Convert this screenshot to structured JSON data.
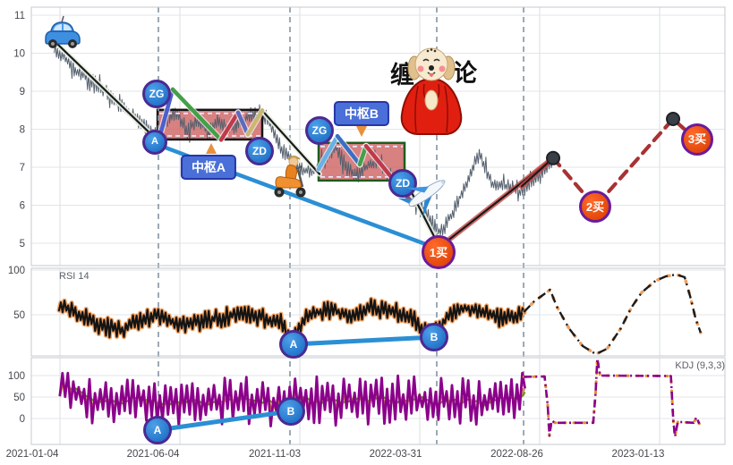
{
  "panels": {
    "rsi_label": "RSI 14",
    "kdj_label": "KDJ (9,3,3)"
  },
  "annotations": {
    "pivot_a_label": "中枢A",
    "pivot_b_label": "中枢B",
    "mascot_left": "缠",
    "mascot_right": "论"
  },
  "markers": {
    "zg_a": {
      "label": "ZG",
      "panel": "price",
      "u": 0.1806,
      "v": 8.93,
      "r": 13,
      "kind": "blue"
    },
    "a_seg": {
      "label": "A",
      "panel": "price",
      "u": 0.1781,
      "v": 7.66,
      "r": 11,
      "kind": "blue"
    },
    "zd_a": {
      "label": "ZD",
      "panel": "price",
      "u": 0.329,
      "v": 7.42,
      "r": 13,
      "kind": "blue"
    },
    "zg_b": {
      "label": "ZG",
      "panel": "price",
      "u": 0.4155,
      "v": 7.96,
      "r": 13,
      "kind": "blue"
    },
    "zd_b": {
      "label": "ZD",
      "panel": "price",
      "u": 0.5355,
      "v": 6.58,
      "r": 13,
      "kind": "blue"
    },
    "buy1": {
      "label": "1买",
      "panel": "price",
      "u": 0.5871,
      "v": 4.76,
      "r": 16,
      "kind": "buy"
    },
    "buy2": {
      "label": "2买",
      "panel": "price",
      "u": 0.8129,
      "v": 5.96,
      "r": 15,
      "kind": "buy"
    },
    "buy3": {
      "label": "3买",
      "panel": "price",
      "u": 0.96,
      "v": 7.73,
      "r": 15,
      "kind": "buy"
    },
    "rsi_a": {
      "label": "A",
      "panel": "rsi",
      "u": 0.3781,
      "v": 17,
      "r": 13,
      "kind": "blue"
    },
    "rsi_b": {
      "label": "B",
      "panel": "rsi",
      "u": 0.5806,
      "v": 25,
      "r": 13,
      "kind": "blue"
    },
    "kdj_a": {
      "label": "A",
      "panel": "kdj",
      "u": 0.1819,
      "v": -27,
      "r": 13,
      "kind": "blue"
    },
    "kdj_b": {
      "label": "B",
      "panel": "kdj",
      "u": 0.3742,
      "v": 17,
      "r": 13,
      "kind": "blue"
    }
  },
  "colors": {
    "pivot_fill": "#cd6161",
    "buy_marker": "#e8480e",
    "blue_marker": "#1e7ad4",
    "marker_ring": "#4b2a92",
    "trend_blue": "#2b8fd4",
    "forecast_red": "#a83232",
    "kdj_j": "#8b008b",
    "kdj_k": "#e09030",
    "kdj_d": "#6b8e23",
    "rsi_line": "#141414",
    "rsi_glow": "#f0a060",
    "grid": "#dcdfe3"
  },
  "chart_data": {
    "type": "line",
    "x_tick_labels": [
      "2021-01-04",
      "2021-06-04",
      "2021-11-03",
      "2022-03-31",
      "2022-08-26",
      "2023-01-13"
    ],
    "x_tick_u": [
      0.0013,
      0.1755,
      0.351,
      0.5252,
      0.7,
      0.8748
    ],
    "grid_u": [
      0.0413,
      0.2142,
      0.3871,
      0.56,
      0.7329,
      0.9058
    ],
    "event_lines_u": [
      0.1832,
      0.3729,
      0.5845,
      0.7097
    ],
    "price": {
      "ylabel_ticks": [
        11,
        10,
        9,
        8,
        7,
        6,
        5
      ],
      "ylim": [
        4.5,
        11.2
      ],
      "series_anchors": [
        [
          0.033,
          10.05
        ],
        [
          0.045,
          9.95
        ],
        [
          0.06,
          9.6
        ],
        [
          0.08,
          9.35
        ],
        [
          0.1,
          9.1
        ],
        [
          0.12,
          8.75
        ],
        [
          0.145,
          8.35
        ],
        [
          0.165,
          8.05
        ],
        [
          0.183,
          7.8
        ],
        [
          0.195,
          8.25
        ],
        [
          0.21,
          8.45
        ],
        [
          0.225,
          7.95
        ],
        [
          0.24,
          8.3
        ],
        [
          0.255,
          7.9
        ],
        [
          0.27,
          8.25
        ],
        [
          0.285,
          8.0
        ],
        [
          0.3,
          8.15
        ],
        [
          0.315,
          8.35
        ],
        [
          0.33,
          8.45
        ],
        [
          0.345,
          8.1
        ],
        [
          0.36,
          7.5
        ],
        [
          0.375,
          7.15
        ],
        [
          0.39,
          6.95
        ],
        [
          0.405,
          6.85
        ],
        [
          0.4142,
          7.0
        ],
        [
          0.425,
          7.2
        ],
        [
          0.44,
          7.5
        ],
        [
          0.455,
          7.0
        ],
        [
          0.47,
          6.8
        ],
        [
          0.485,
          7.05
        ],
        [
          0.5,
          7.15
        ],
        [
          0.515,
          6.8
        ],
        [
          0.53,
          6.65
        ],
        [
          0.545,
          6.3
        ],
        [
          0.56,
          6.05
        ],
        [
          0.575,
          5.65
        ],
        [
          0.5871,
          5.3
        ],
        [
          0.6,
          5.55
        ],
        [
          0.615,
          6.1
        ],
        [
          0.63,
          6.7
        ],
        [
          0.6452,
          7.35
        ],
        [
          0.655,
          6.9
        ],
        [
          0.665,
          6.55
        ],
        [
          0.68,
          6.5
        ],
        [
          0.695,
          6.45
        ],
        [
          0.705,
          6.35
        ],
        [
          0.72,
          6.55
        ],
        [
          0.735,
          6.85
        ],
        [
          0.7523,
          7.15
        ]
      ],
      "pivots": [
        {
          "name": "中枢A",
          "u1": 0.182,
          "u2": 0.3329,
          "zg": 8.51,
          "zd": 7.73,
          "border": "#141414"
        },
        {
          "name": "中枢B",
          "u1": 0.4142,
          "u2": 0.5381,
          "zg": 7.64,
          "zd": 6.65,
          "border": "#1e5c1e"
        }
      ],
      "segments_white": [
        [
          [
            0.0387,
            10.22
          ],
          [
            0.1832,
            7.68
          ]
        ],
        [
          [
            0.3329,
            8.49
          ],
          [
            0.4155,
            6.82
          ]
        ],
        [
          [
            0.5381,
            6.7
          ],
          [
            0.5871,
            4.95
          ]
        ]
      ],
      "segments_red": [
        [
          [
            0.5871,
            4.88
          ],
          [
            0.7523,
            7.24
          ]
        ],
        [
          [
            0.7071,
            6.5
          ],
          [
            0.7523,
            7.24
          ]
        ]
      ],
      "pens": [
        {
          "c": "#4a5fd0",
          "p": [
            [
              0.1832,
              7.68
            ],
            [
              0.2039,
              9.05
            ]
          ]
        },
        {
          "c": "#43a047",
          "p": [
            [
              0.2039,
              9.05
            ],
            [
              0.2735,
              7.72
            ]
          ]
        },
        {
          "c": "#c0394b",
          "p": [
            [
              0.2735,
              7.72
            ],
            [
              0.2981,
              8.44
            ]
          ]
        },
        {
          "c": "#5c6bc0",
          "p": [
            [
              0.2981,
              8.44
            ],
            [
              0.3123,
              7.86
            ]
          ]
        },
        {
          "c": "#c9b870",
          "p": [
            [
              0.3123,
              7.86
            ],
            [
              0.3329,
              8.5
            ]
          ]
        },
        {
          "c": "#67b0e8",
          "p": [
            [
              0.4142,
              6.95
            ],
            [
              0.4413,
              7.82
            ]
          ]
        },
        {
          "c": "#3b6fc4",
          "p": [
            [
              0.4413,
              7.82
            ],
            [
              0.4735,
              7.07
            ]
          ]
        },
        {
          "c": "#43a047",
          "p": [
            [
              0.4735,
              7.07
            ],
            [
              0.4826,
              7.56
            ]
          ]
        },
        {
          "c": "#c0394b",
          "p": [
            [
              0.4826,
              7.56
            ],
            [
              0.551,
              6.02
            ]
          ]
        }
      ],
      "trend_line": [
        [
          0.1781,
          7.62
        ],
        [
          0.5871,
          4.85
        ]
      ],
      "forecast": [
        [
          0.7523,
          7.24
        ],
        [
          0.8129,
          5.96
        ],
        [
          0.9252,
          8.27
        ],
        [
          0.96,
          7.7
        ]
      ],
      "forecast_dots": [
        [
          0.7523,
          7.24
        ],
        [
          0.9252,
          8.27
        ]
      ]
    },
    "rsi": {
      "period": 14,
      "ylabel_ticks": [
        100,
        50
      ],
      "anchors": [
        [
          0.04,
          62
        ],
        [
          0.07,
          50
        ],
        [
          0.1,
          38
        ],
        [
          0.13,
          33
        ],
        [
          0.16,
          45
        ],
        [
          0.19,
          50
        ],
        [
          0.21,
          38
        ],
        [
          0.24,
          42
        ],
        [
          0.27,
          46
        ],
        [
          0.3,
          52
        ],
        [
          0.33,
          48
        ],
        [
          0.36,
          40
        ],
        [
          0.378,
          22
        ],
        [
          0.4,
          50
        ],
        [
          0.43,
          55
        ],
        [
          0.46,
          50
        ],
        [
          0.49,
          58
        ],
        [
          0.52,
          55
        ],
        [
          0.55,
          45
        ],
        [
          0.57,
          30
        ],
        [
          0.581,
          28
        ],
        [
          0.6,
          48
        ],
        [
          0.62,
          58
        ],
        [
          0.64,
          55
        ],
        [
          0.66,
          50
        ],
        [
          0.68,
          45
        ],
        [
          0.7,
          50
        ],
        [
          0.712,
          55
        ]
      ],
      "forecast_anchors": [
        [
          0.71,
          53
        ],
        [
          0.725,
          65
        ],
        [
          0.748,
          78
        ],
        [
          0.757,
          60
        ],
        [
          0.775,
          35
        ],
        [
          0.795,
          15
        ],
        [
          0.814,
          6
        ],
        [
          0.83,
          12
        ],
        [
          0.85,
          35
        ],
        [
          0.865,
          58
        ],
        [
          0.88,
          75
        ],
        [
          0.9,
          88
        ],
        [
          0.915,
          93
        ],
        [
          0.93,
          95
        ],
        [
          0.942,
          92
        ],
        [
          0.95,
          70
        ],
        [
          0.958,
          45
        ],
        [
          0.965,
          30
        ]
      ],
      "divergence": {
        "a": [
          0.3781,
          17
        ],
        "b": [
          0.5806,
          25
        ]
      }
    },
    "kdj": {
      "params": "9,3,3",
      "ylabel_ticks": [
        100,
        50,
        0
      ],
      "anchors": [
        [
          0.04,
          75
        ],
        [
          0.1,
          35
        ],
        [
          0.15,
          45
        ],
        [
          0.2,
          30
        ],
        [
          0.25,
          40
        ],
        [
          0.3,
          45
        ],
        [
          0.35,
          35
        ],
        [
          0.4,
          45
        ],
        [
          0.45,
          40
        ],
        [
          0.5,
          45
        ],
        [
          0.55,
          40
        ],
        [
          0.6,
          45
        ],
        [
          0.65,
          40
        ],
        [
          0.7,
          55
        ],
        [
          0.712,
          90
        ]
      ],
      "forecast_anchors": [
        [
          0.71,
          97
        ],
        [
          0.74,
          98
        ],
        [
          0.7445,
          30
        ],
        [
          0.747,
          -40
        ],
        [
          0.75,
          -5
        ],
        [
          0.755,
          -10
        ],
        [
          0.81,
          -10
        ],
        [
          0.8135,
          60
        ],
        [
          0.816,
          140
        ],
        [
          0.82,
          100
        ],
        [
          0.922,
          99
        ],
        [
          0.9255,
          -5
        ],
        [
          0.928,
          -42
        ],
        [
          0.932,
          -8
        ],
        [
          0.955,
          -10
        ],
        [
          0.959,
          3
        ],
        [
          0.963,
          -12
        ]
      ],
      "divergence": {
        "a": [
          0.1819,
          -27
        ],
        "b": [
          0.3742,
          17
        ]
      }
    }
  }
}
